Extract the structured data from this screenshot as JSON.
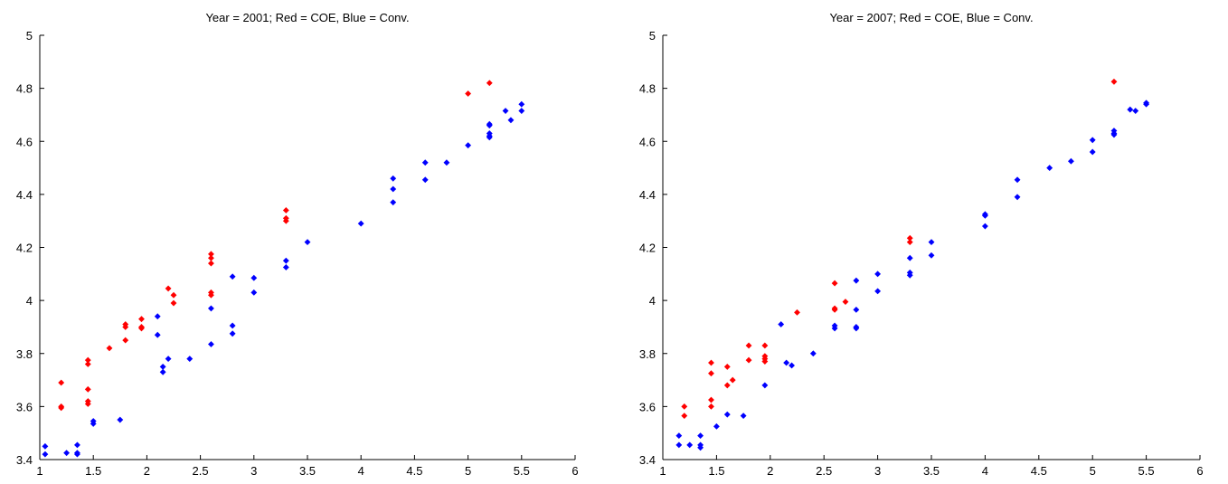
{
  "chart_data": [
    {
      "type": "scatter",
      "title": "Year = 2001; Red = COE, Blue = Conv.",
      "xlabel": "",
      "ylabel": "",
      "xlim": [
        1,
        6
      ],
      "ylim": [
        3.4,
        5
      ],
      "xticks": [
        "1",
        "1.5",
        "2",
        "2.5",
        "3",
        "3.5",
        "4",
        "4.5",
        "5",
        "5.5",
        "6"
      ],
      "yticks": [
        "3.4",
        "3.6",
        "3.8",
        "4",
        "4.2",
        "4.4",
        "4.6",
        "4.8",
        "5"
      ],
      "grid": false,
      "series": [
        {
          "color": "#ff0000",
          "marker": "diamond",
          "points": [
            [
              1.2,
              3.69
            ],
            [
              1.2,
              3.6
            ],
            [
              1.2,
              3.595
            ],
            [
              1.45,
              3.775
            ],
            [
              1.45,
              3.76
            ],
            [
              1.45,
              3.665
            ],
            [
              1.45,
              3.62
            ],
            [
              1.45,
              3.61
            ],
            [
              1.65,
              3.82
            ],
            [
              1.8,
              3.91
            ],
            [
              1.8,
              3.9
            ],
            [
              1.8,
              3.85
            ],
            [
              1.95,
              3.93
            ],
            [
              1.95,
              3.9
            ],
            [
              1.95,
              3.895
            ],
            [
              2.2,
              4.045
            ],
            [
              2.25,
              4.02
            ],
            [
              2.25,
              3.99
            ],
            [
              2.6,
              4.175
            ],
            [
              2.6,
              4.16
            ],
            [
              2.6,
              4.14
            ],
            [
              2.6,
              4.03
            ],
            [
              2.6,
              4.02
            ],
            [
              3.3,
              4.34
            ],
            [
              3.3,
              4.31
            ],
            [
              3.3,
              4.3
            ],
            [
              5.0,
              4.78
            ],
            [
              5.2,
              4.82
            ]
          ]
        },
        {
          "color": "#0000ff",
          "marker": "diamond",
          "points": [
            [
              1.05,
              3.45
            ],
            [
              1.05,
              3.42
            ],
            [
              1.25,
              3.425
            ],
            [
              1.35,
              3.455
            ],
            [
              1.35,
              3.42
            ],
            [
              1.35,
              3.425
            ],
            [
              1.5,
              3.545
            ],
            [
              1.5,
              3.535
            ],
            [
              1.75,
              3.55
            ],
            [
              2.1,
              3.94
            ],
            [
              2.1,
              3.87
            ],
            [
              2.15,
              3.75
            ],
            [
              2.15,
              3.73
            ],
            [
              2.2,
              3.78
            ],
            [
              2.4,
              3.78
            ],
            [
              2.6,
              3.97
            ],
            [
              2.6,
              3.835
            ],
            [
              2.8,
              4.09
            ],
            [
              2.8,
              3.905
            ],
            [
              2.8,
              3.875
            ],
            [
              3.0,
              4.085
            ],
            [
              3.0,
              4.03
            ],
            [
              3.3,
              4.15
            ],
            [
              3.3,
              4.125
            ],
            [
              3.5,
              4.22
            ],
            [
              4.0,
              4.29
            ],
            [
              4.3,
              4.46
            ],
            [
              4.3,
              4.42
            ],
            [
              4.3,
              4.37
            ],
            [
              4.6,
              4.52
            ],
            [
              4.6,
              4.455
            ],
            [
              4.8,
              4.52
            ],
            [
              5.0,
              4.585
            ],
            [
              5.2,
              4.665
            ],
            [
              5.2,
              4.66
            ],
            [
              5.2,
              4.63
            ],
            [
              5.2,
              4.62
            ],
            [
              5.2,
              4.615
            ],
            [
              5.35,
              4.715
            ],
            [
              5.4,
              4.68
            ],
            [
              5.5,
              4.74
            ],
            [
              5.5,
              4.715
            ]
          ]
        }
      ]
    },
    {
      "type": "scatter",
      "title": "Year = 2007; Red = COE, Blue = Conv.",
      "xlabel": "",
      "ylabel": "",
      "xlim": [
        1,
        6
      ],
      "ylim": [
        3.4,
        5
      ],
      "xticks": [
        "1",
        "1.5",
        "2",
        "2.5",
        "3",
        "3.5",
        "4",
        "4.5",
        "5",
        "5.5",
        "6"
      ],
      "yticks": [
        "3.4",
        "3.6",
        "3.8",
        "4",
        "4.2",
        "4.4",
        "4.6",
        "4.8",
        "5"
      ],
      "grid": false,
      "series": [
        {
          "color": "#ff0000",
          "marker": "diamond",
          "points": [
            [
              1.2,
              3.6
            ],
            [
              1.2,
              3.565
            ],
            [
              1.45,
              3.765
            ],
            [
              1.45,
              3.725
            ],
            [
              1.45,
              3.625
            ],
            [
              1.45,
              3.6
            ],
            [
              1.6,
              3.75
            ],
            [
              1.6,
              3.68
            ],
            [
              1.65,
              3.7
            ],
            [
              1.8,
              3.83
            ],
            [
              1.8,
              3.775
            ],
            [
              1.95,
              3.83
            ],
            [
              1.95,
              3.79
            ],
            [
              1.95,
              3.78
            ],
            [
              1.95,
              3.77
            ],
            [
              2.25,
              3.955
            ],
            [
              2.6,
              4.065
            ],
            [
              2.6,
              3.97
            ],
            [
              2.6,
              3.965
            ],
            [
              2.7,
              3.995
            ],
            [
              3.3,
              4.235
            ],
            [
              3.3,
              4.22
            ],
            [
              5.2,
              4.825
            ]
          ]
        },
        {
          "color": "#0000ff",
          "marker": "diamond",
          "points": [
            [
              1.15,
              3.49
            ],
            [
              1.15,
              3.455
            ],
            [
              1.25,
              3.455
            ],
            [
              1.35,
              3.49
            ],
            [
              1.35,
              3.455
            ],
            [
              1.35,
              3.445
            ],
            [
              1.5,
              3.525
            ],
            [
              1.6,
              3.57
            ],
            [
              1.75,
              3.565
            ],
            [
              1.95,
              3.68
            ],
            [
              2.1,
              3.91
            ],
            [
              2.15,
              3.765
            ],
            [
              2.2,
              3.755
            ],
            [
              2.4,
              3.8
            ],
            [
              2.6,
              3.905
            ],
            [
              2.6,
              3.895
            ],
            [
              2.8,
              4.075
            ],
            [
              2.8,
              3.965
            ],
            [
              2.8,
              3.9
            ],
            [
              2.8,
              3.895
            ],
            [
              3.0,
              4.1
            ],
            [
              3.0,
              4.035
            ],
            [
              3.3,
              4.16
            ],
            [
              3.3,
              4.105
            ],
            [
              3.3,
              4.095
            ],
            [
              3.5,
              4.22
            ],
            [
              3.5,
              4.17
            ],
            [
              4.0,
              4.325
            ],
            [
              4.0,
              4.32
            ],
            [
              4.0,
              4.28
            ],
            [
              4.3,
              4.455
            ],
            [
              4.3,
              4.39
            ],
            [
              4.6,
              4.5
            ],
            [
              4.8,
              4.525
            ],
            [
              5.0,
              4.605
            ],
            [
              5.0,
              4.56
            ],
            [
              5.2,
              4.64
            ],
            [
              5.2,
              4.63
            ],
            [
              5.2,
              4.625
            ],
            [
              5.35,
              4.72
            ],
            [
              5.4,
              4.715
            ],
            [
              5.5,
              4.745
            ],
            [
              5.5,
              4.74
            ]
          ]
        }
      ]
    }
  ]
}
